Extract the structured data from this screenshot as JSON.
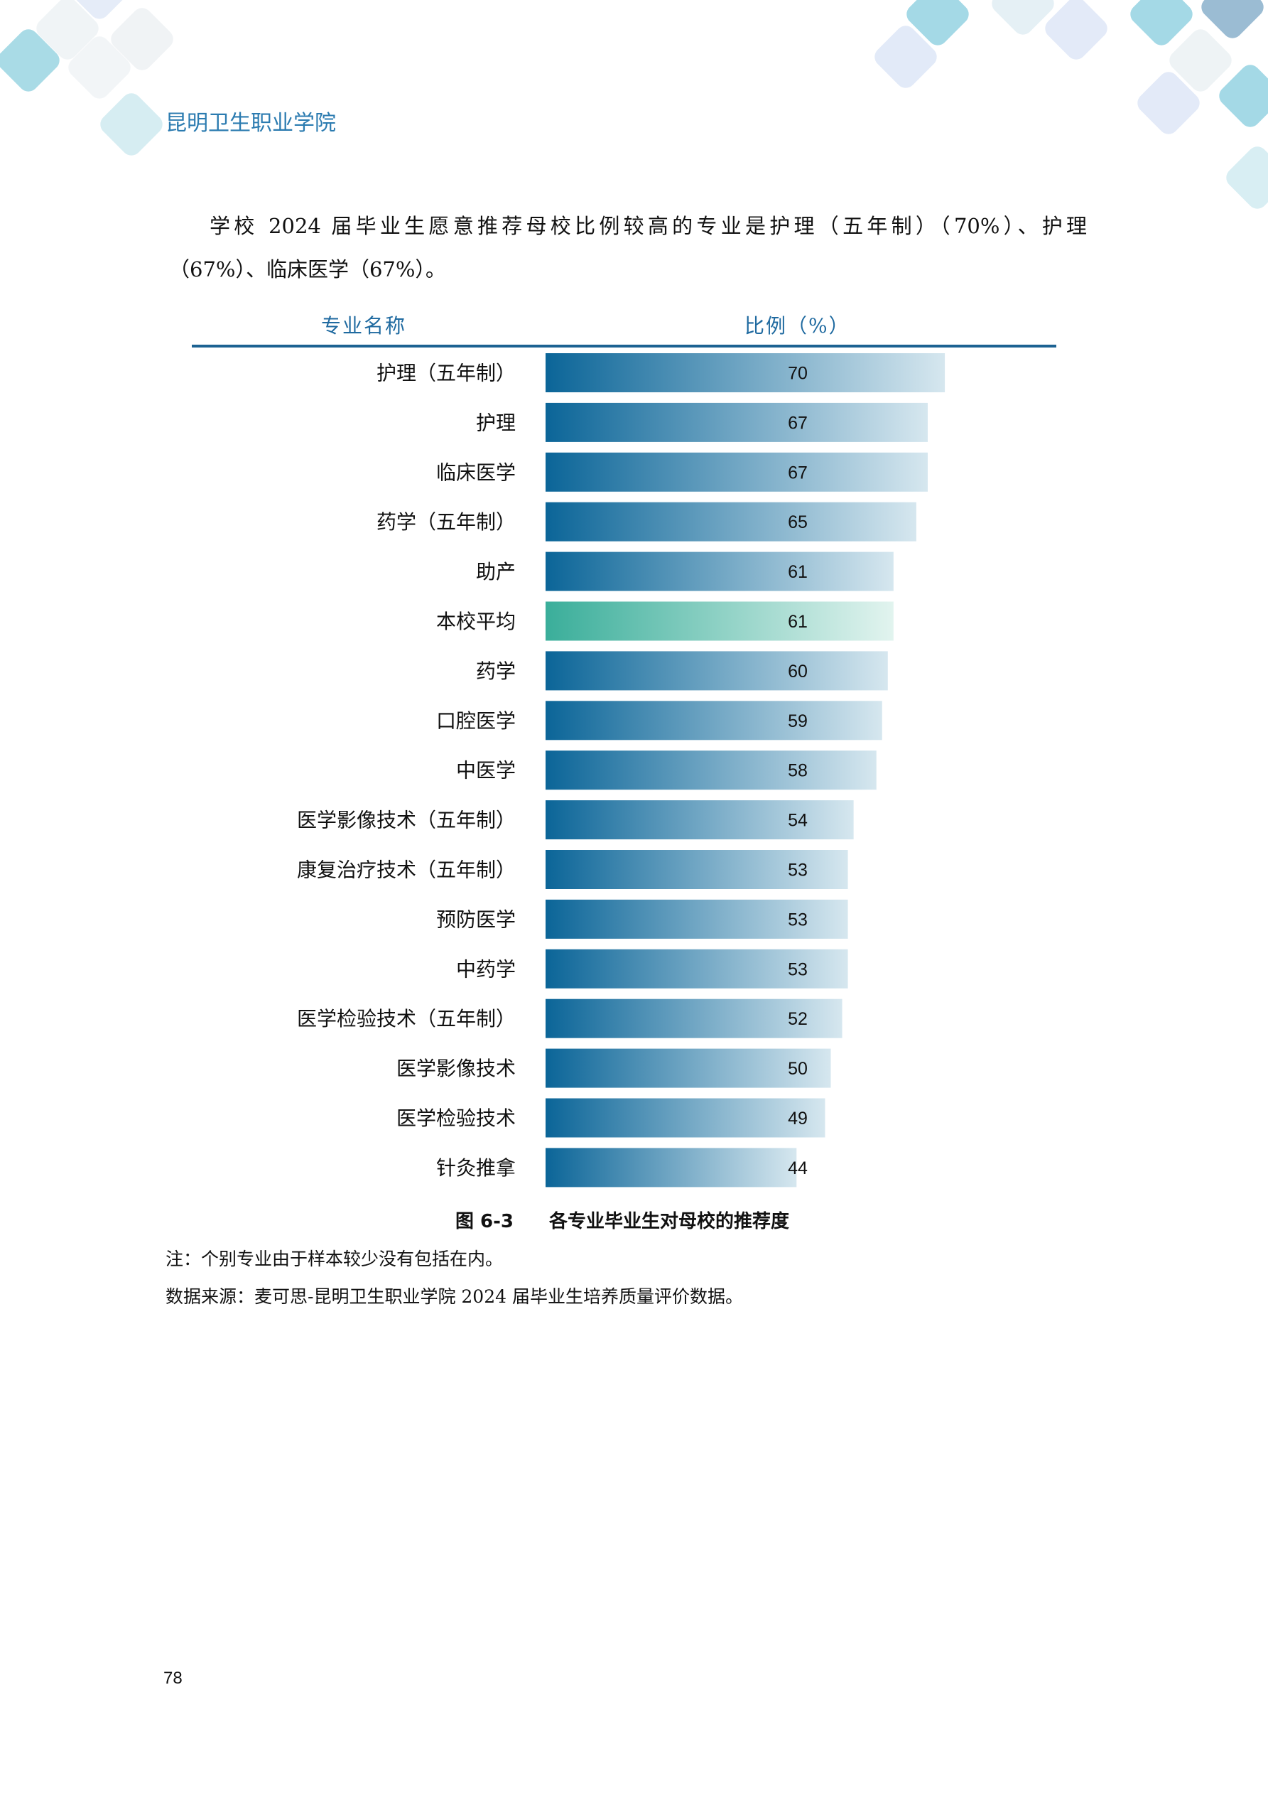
{
  "header": {
    "school_name": "昆明卫生职业学院"
  },
  "paragraph": {
    "line1": "学校 2024 届毕业生愿意推荐母校比例较高的专业是护理（五年制）（70%）、护理",
    "line2": "（67%）、临床医学（67%）。"
  },
  "chart_data": {
    "type": "bar",
    "orientation": "horizontal",
    "column_headers": [
      "专业名称",
      "比例（%）"
    ],
    "categories": [
      "护理（五年制）",
      "护理",
      "临床医学",
      "药学（五年制）",
      "助产",
      "本校平均",
      "药学",
      "口腔医学",
      "中医学",
      "医学影像技术（五年制）",
      "康复治疗技术（五年制）",
      "预防医学",
      "中药学",
      "医学检验技术（五年制）",
      "医学影像技术",
      "医学检验技术",
      "针灸推拿"
    ],
    "values": [
      70,
      67,
      67,
      65,
      61,
      61,
      60,
      59,
      58,
      54,
      53,
      53,
      53,
      52,
      50,
      49,
      44
    ],
    "highlight": "本校平均",
    "colors": {
      "bar_start": "#0b6598",
      "bar_end": "#d6e7ef",
      "avg_start": "#3aae9a",
      "avg_end": "#e2f4ef",
      "header": "#1f6aa0"
    },
    "xlim": [
      0,
      70
    ]
  },
  "caption": {
    "figure_no": "图 6-3",
    "title": "各专业毕业生对母校的推荐度"
  },
  "notes": [
    "注：个别专业由于样本较少没有包括在内。",
    "数据来源：麦可思-昆明卫生职业学院 2024 届毕业生培养质量评价数据。"
  ],
  "page_number": "78"
}
